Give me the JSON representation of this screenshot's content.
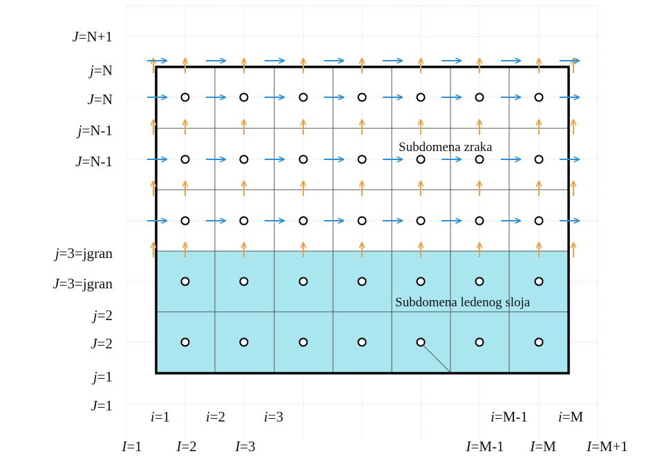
{
  "labels": {
    "rows_left": [
      {
        "var": "J",
        "val": "=N+1"
      },
      {
        "var": "j",
        "val": "=N"
      },
      {
        "var": "J",
        "val": "=N"
      },
      {
        "var": "j",
        "val": "=N-1"
      },
      {
        "var": "J",
        "val": "=N-1"
      },
      {
        "var": "j",
        "val": "=3=jgran"
      },
      {
        "var": "J",
        "val": "=3=jgran"
      },
      {
        "var": "j",
        "val": "=2"
      },
      {
        "var": "J",
        "val": "=2"
      },
      {
        "var": "j",
        "val": "=1"
      },
      {
        "var": "J",
        "val": "=1"
      }
    ],
    "cols_small_i": [
      {
        "var": "i",
        "val": "=1"
      },
      {
        "var": "i",
        "val": "=2"
      },
      {
        "var": "i",
        "val": "=3"
      },
      {
        "var": "i",
        "val": "=M-1"
      },
      {
        "var": "i",
        "val": "=M"
      }
    ],
    "cols_big_I": [
      {
        "var": "I",
        "val": "=1"
      },
      {
        "var": "I",
        "val": "=2"
      },
      {
        "var": "I",
        "val": "=3"
      },
      {
        "var": "I",
        "val": "=M-1"
      },
      {
        "var": "I",
        "val": "=M"
      },
      {
        "var": "I",
        "val": "=M+1"
      }
    ]
  },
  "regions": {
    "air": "Subdomena zraka",
    "ice": "Subdomena ledenog sloja"
  },
  "colors": {
    "ice_fill": "#a9e6f0",
    "u_arrow": "#2f8fd6",
    "v_arrow": "#f0a040",
    "domain_border": "#000000",
    "grid_lines": "#555555",
    "aux_grid": "#cfe3ec"
  }
}
